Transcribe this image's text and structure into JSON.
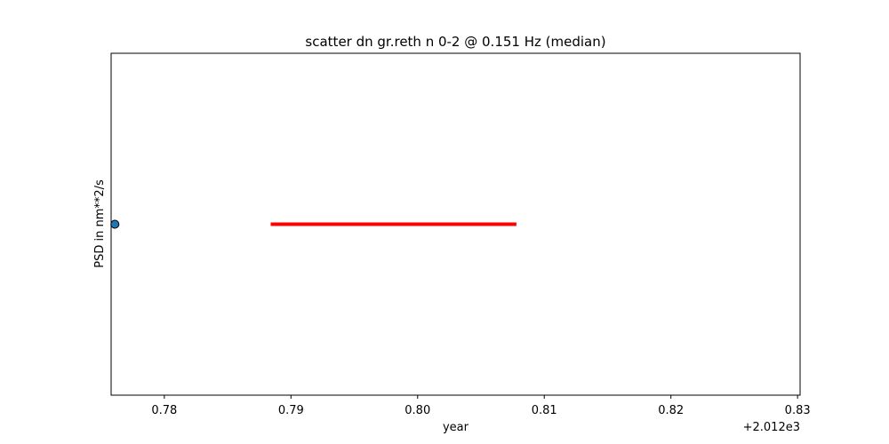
{
  "chart_data": {
    "type": "scatter",
    "title": "scatter dn gr.reth n 0-2 @ 0.151 Hz (median)",
    "xlabel": "year",
    "ylabel": "PSD in nm**2/s",
    "x_offset_label": "+2.012e3",
    "xlim": [
      0.7758,
      0.8302
    ],
    "x_ticks": [
      0.78,
      0.79,
      0.8,
      0.81,
      0.82,
      0.83
    ],
    "x_tick_labels": [
      "0.78",
      "0.79",
      "0.80",
      "0.81",
      "0.82",
      "0.83"
    ],
    "ylim": [
      -1,
      1
    ],
    "y_ticks": [],
    "grid": false,
    "legend": "none",
    "series": [
      {
        "type": "scatter",
        "points": [
          {
            "x": 0.7761,
            "y": 0
          }
        ],
        "color": "#1f77b4"
      },
      {
        "type": "line",
        "points": [
          {
            "x": 0.7884,
            "y": 0
          },
          {
            "x": 0.8078,
            "y": 0
          }
        ],
        "color": "#ff0000"
      }
    ]
  }
}
